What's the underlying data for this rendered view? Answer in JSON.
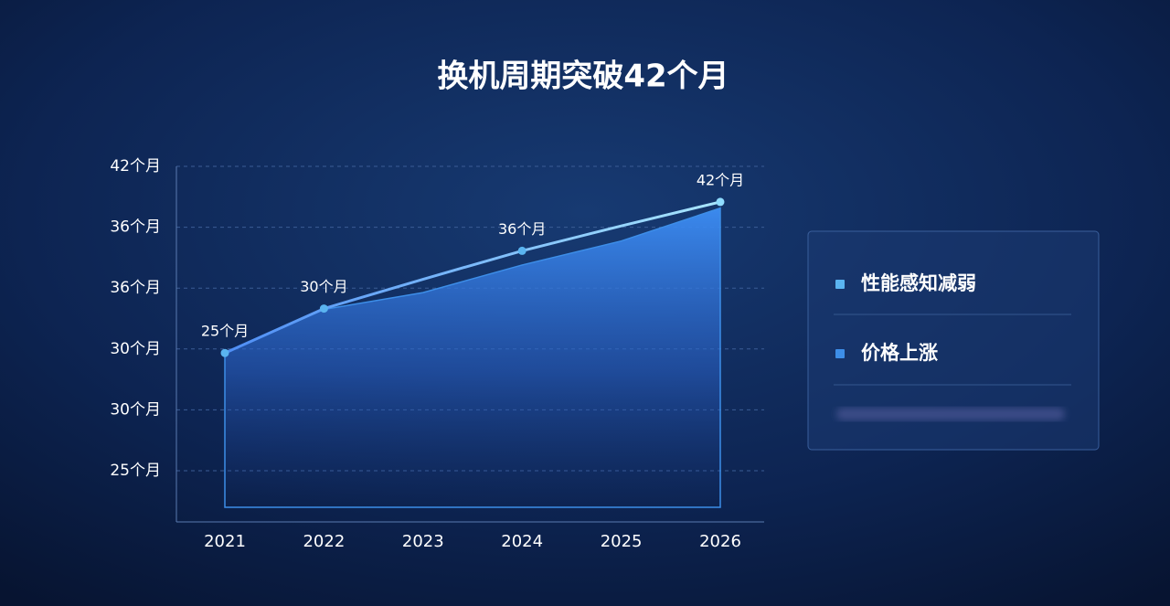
{
  "chart_data": {
    "type": "line_area",
    "title": "换机周期突破42个月",
    "categories": [
      "2021",
      "2022",
      "2023",
      "2024",
      "2025",
      "2026"
    ],
    "y_axis_labels": [
      "42个月",
      "36个月",
      "36个月",
      "30个月",
      "30个月",
      "25个月"
    ],
    "ylim": [
      6,
      46
    ],
    "grid": true,
    "series": [
      {
        "name": "性能感知减弱",
        "color": "#5ab4f0",
        "mark": "line",
        "values": [
          25,
          30,
          33.3,
          36.5,
          39.3,
          42
        ],
        "value_labels": [
          "25个月",
          "30个月",
          null,
          "36个月",
          null,
          "42个月"
        ]
      },
      {
        "name": "价格上涨",
        "color": "#3d8ee8",
        "mark": "area",
        "values": [
          25,
          29.9,
          31.8,
          34.9,
          37.6,
          41.3
        ]
      }
    ]
  }
}
